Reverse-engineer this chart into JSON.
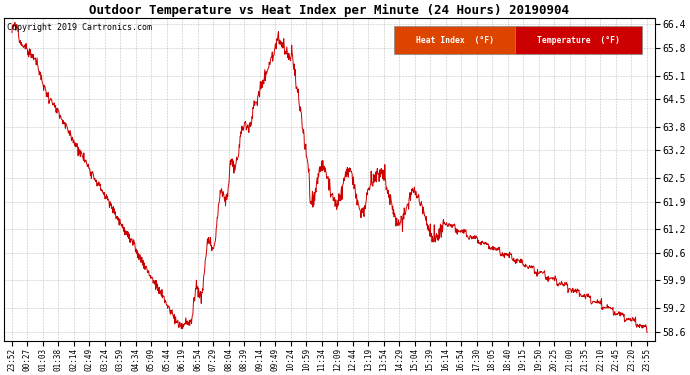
{
  "title": "Outdoor Temperature vs Heat Index per Minute (24 Hours) 20190904",
  "copyright": "Copyright 2019 Cartronics.com",
  "background_color": "#ffffff",
  "line_color": "#cc0000",
  "grid_color": "#bbbbbb",
  "yticks": [
    58.6,
    59.2,
    59.9,
    60.6,
    61.2,
    61.9,
    62.5,
    63.2,
    63.8,
    64.5,
    65.1,
    65.8,
    66.4
  ],
  "ylim": [
    58.35,
    66.55
  ],
  "legend_heat_index_text": "Heat Index  (°F)",
  "legend_temp_text": "Temperature  (°F)",
  "legend_heat_bg": "#dd2200",
  "legend_temp_bg": "#cc0000",
  "xtick_labels": [
    "23:52",
    "00:27",
    "01:03",
    "01:38",
    "02:14",
    "02:49",
    "03:24",
    "03:59",
    "04:34",
    "05:09",
    "05:44",
    "06:19",
    "06:54",
    "07:29",
    "08:04",
    "08:39",
    "09:14",
    "09:49",
    "10:24",
    "10:59",
    "11:34",
    "12:09",
    "12:44",
    "13:19",
    "13:54",
    "14:29",
    "15:04",
    "15:39",
    "16:14",
    "16:54",
    "17:30",
    "18:05",
    "18:40",
    "19:15",
    "19:50",
    "20:25",
    "21:00",
    "21:35",
    "22:10",
    "22:45",
    "23:20",
    "23:55"
  ],
  "n_points": 1440
}
